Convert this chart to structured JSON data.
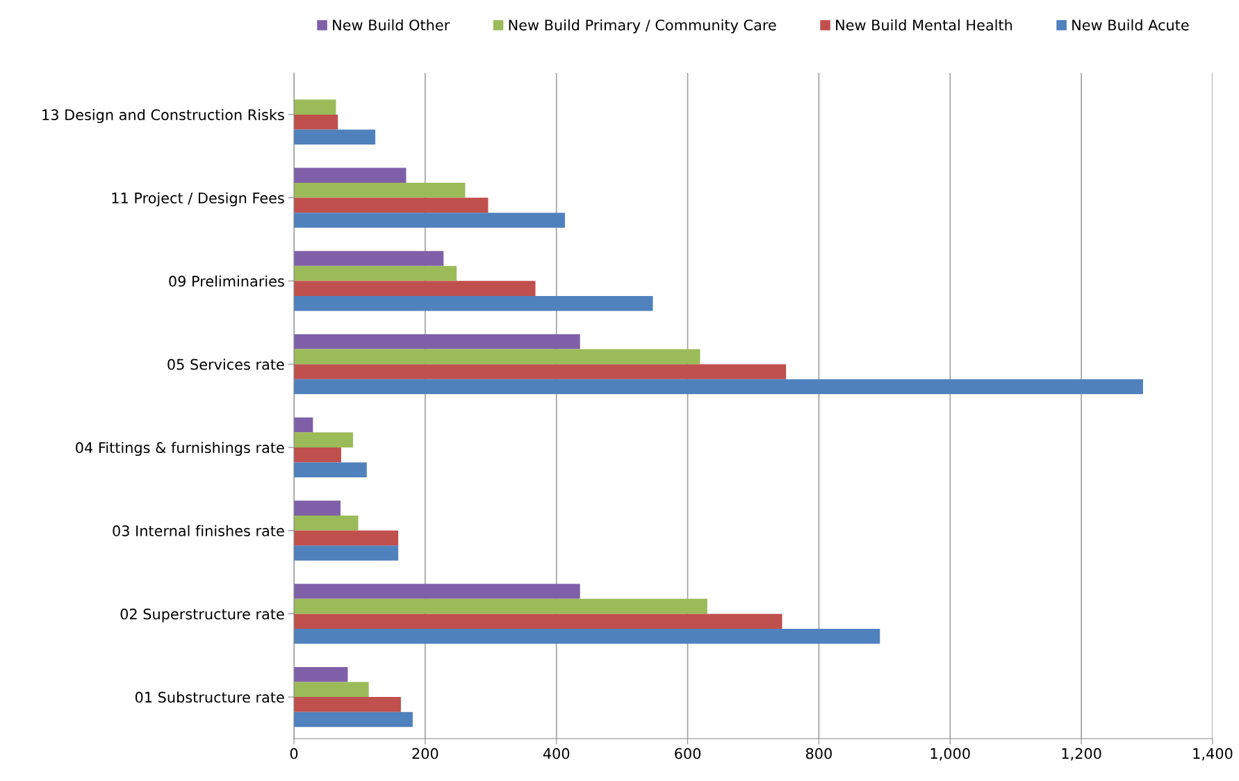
{
  "chart_data": {
    "type": "bar",
    "orientation": "horizontal",
    "categories": [
      "13 Design and Construction Risks",
      "11 Project / Design Fees",
      "09 Preliminaries",
      "05 Services rate",
      "04 Fittings & furnishings rate",
      "03 Internal finishes rate",
      "02 Superstructure rate",
      "01 Substructure rate"
    ],
    "series": [
      {
        "name": "New Build Other",
        "color": "#7f60a8",
        "values": [
          null,
          171,
          228,
          436,
          29,
          71,
          436,
          82
        ]
      },
      {
        "name": "New Build Primary / Community Care",
        "color": "#9bbb59",
        "values": [
          64,
          261,
          248,
          619,
          90,
          98,
          630,
          114
        ]
      },
      {
        "name": "New Build Mental Health",
        "color": "#c0504d",
        "values": [
          67,
          296,
          368,
          750,
          72,
          159,
          744,
          163
        ]
      },
      {
        "name": "New Build Acute",
        "color": "#4f81bd",
        "values": [
          124,
          413,
          547,
          1294,
          111,
          159,
          893,
          181
        ]
      }
    ],
    "xlim": [
      0,
      1400
    ],
    "xticks": [
      0,
      200,
      400,
      600,
      800,
      {
        "value": 1000,
        "label": "1,000"
      },
      {
        "value": 1200,
        "label": "1,200"
      },
      {
        "value": 1400,
        "label": "1,400"
      }
    ],
    "grid": "x",
    "legend": "top"
  }
}
